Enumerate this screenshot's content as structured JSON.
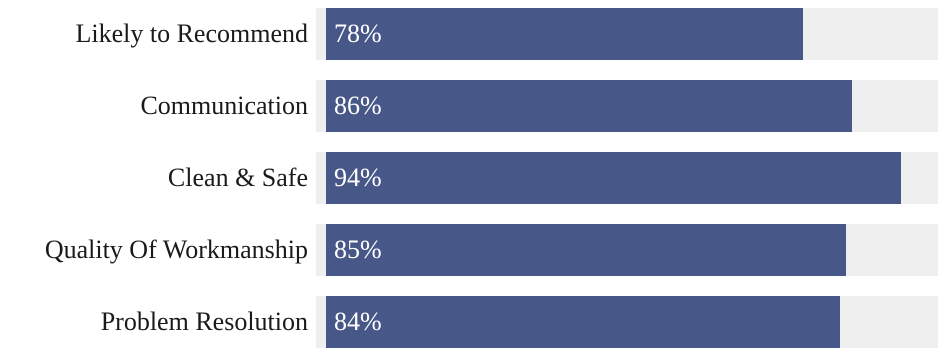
{
  "chart_data": {
    "type": "bar",
    "orientation": "horizontal",
    "categories": [
      "Likely to Recommend",
      "Communication",
      "Clean & Safe",
      "Quality Of Workmanship",
      "Problem Resolution"
    ],
    "values": [
      78,
      86,
      94,
      85,
      84
    ],
    "value_labels": [
      "78%",
      "86%",
      "94%",
      "85%",
      "84%"
    ],
    "xlim": [
      0,
      100
    ],
    "grid": false,
    "legend": "none",
    "colors": {
      "bar": "#475787",
      "track": "#efefef",
      "value_text": "#ffffff",
      "label_text": "#1a1a1a"
    }
  }
}
